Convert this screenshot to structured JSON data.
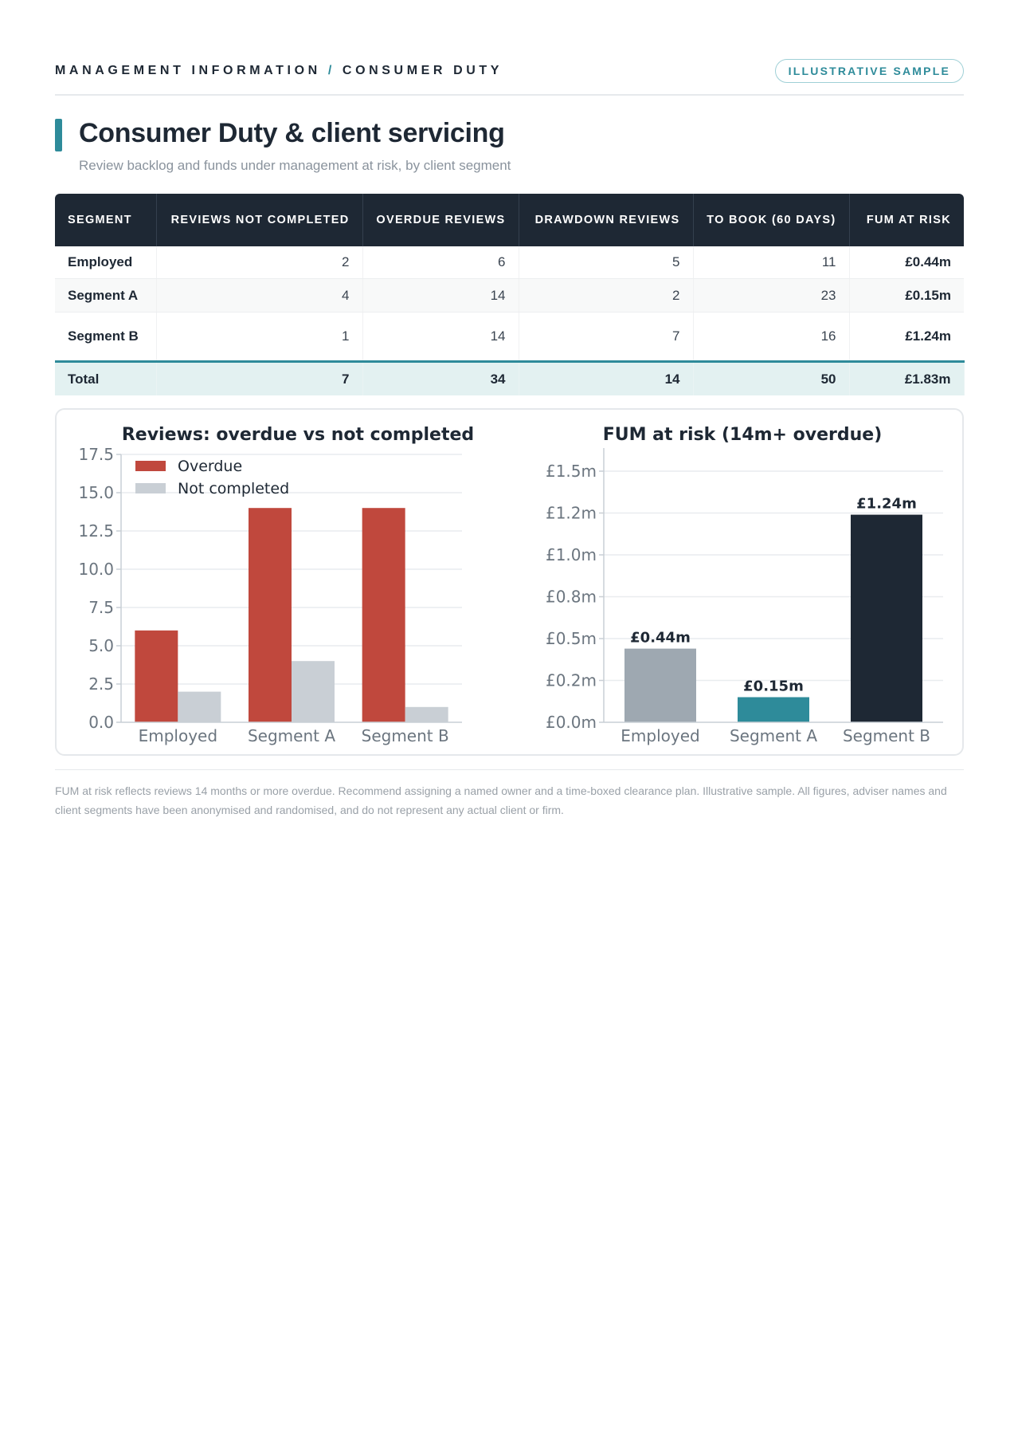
{
  "header": {
    "eyebrow_left": "MANAGEMENT INFORMATION",
    "eyebrow_sep": "/",
    "eyebrow_right": "CONSUMER DUTY",
    "badge": "ILLUSTRATIVE SAMPLE"
  },
  "title": "Consumer Duty & client servicing",
  "subtitle": "Review backlog and funds under management at risk, by client segment",
  "table": {
    "columns": [
      "SEGMENT",
      "REVIEWS NOT COMPLETED",
      "OVERDUE REVIEWS",
      "DRAWDOWN REVIEWS",
      "TO BOOK (60 DAYS)",
      "FUM AT RISK"
    ],
    "rows": [
      [
        "Employed",
        "2",
        "6",
        "5",
        "11",
        "£0.44m"
      ],
      [
        "Segment A",
        "4",
        "14",
        "2",
        "23",
        "£0.15m"
      ],
      [
        "Segment B",
        "1",
        "14",
        "7",
        "16",
        "£1.24m"
      ]
    ],
    "total": [
      "Total",
      "7",
      "34",
      "14",
      "50",
      "£1.83m"
    ]
  },
  "chart_data": [
    {
      "type": "bar",
      "title": "Reviews: overdue vs not completed",
      "categories": [
        "Employed",
        "Segment A",
        "Segment B"
      ],
      "series": [
        {
          "name": "Overdue",
          "values": [
            6,
            14,
            14
          ],
          "color": "#c0483d"
        },
        {
          "name": "Not completed",
          "values": [
            2,
            4,
            1
          ],
          "color": "#c9cfd5"
        }
      ],
      "ylim": [
        0,
        17.5
      ],
      "yticks": [
        "0.0",
        "2.5",
        "5.0",
        "7.5",
        "10.0",
        "12.5",
        "15.0",
        "17.5"
      ],
      "grid": true,
      "legend": "top-left"
    },
    {
      "type": "bar",
      "title": "FUM at risk (14m+ overdue)",
      "categories": [
        "Employed",
        "Segment A",
        "Segment B"
      ],
      "values": [
        0.44,
        0.15,
        1.24
      ],
      "data_labels": [
        "£0.44m",
        "£0.15m",
        "£1.24m"
      ],
      "colors": [
        "#9ea8b1",
        "#2e8b9a",
        "#1e2834"
      ],
      "ylim": [
        0,
        1.6
      ],
      "yticks": [
        "£0.0m",
        "£0.2m",
        "£0.5m",
        "£0.8m",
        "£1.0m",
        "£1.2m",
        "£1.5m"
      ],
      "ytick_values": [
        0,
        0.25,
        0.5,
        0.75,
        1.0,
        1.25,
        1.5
      ],
      "grid": true
    }
  ],
  "footnote": "FUM at risk reflects reviews 14 months or more overdue. Recommend assigning a named owner and a time-boxed clearance plan. Illustrative sample. All figures, adviser names and client segments have been anonymised and randomised, and do not represent any actual client or firm."
}
